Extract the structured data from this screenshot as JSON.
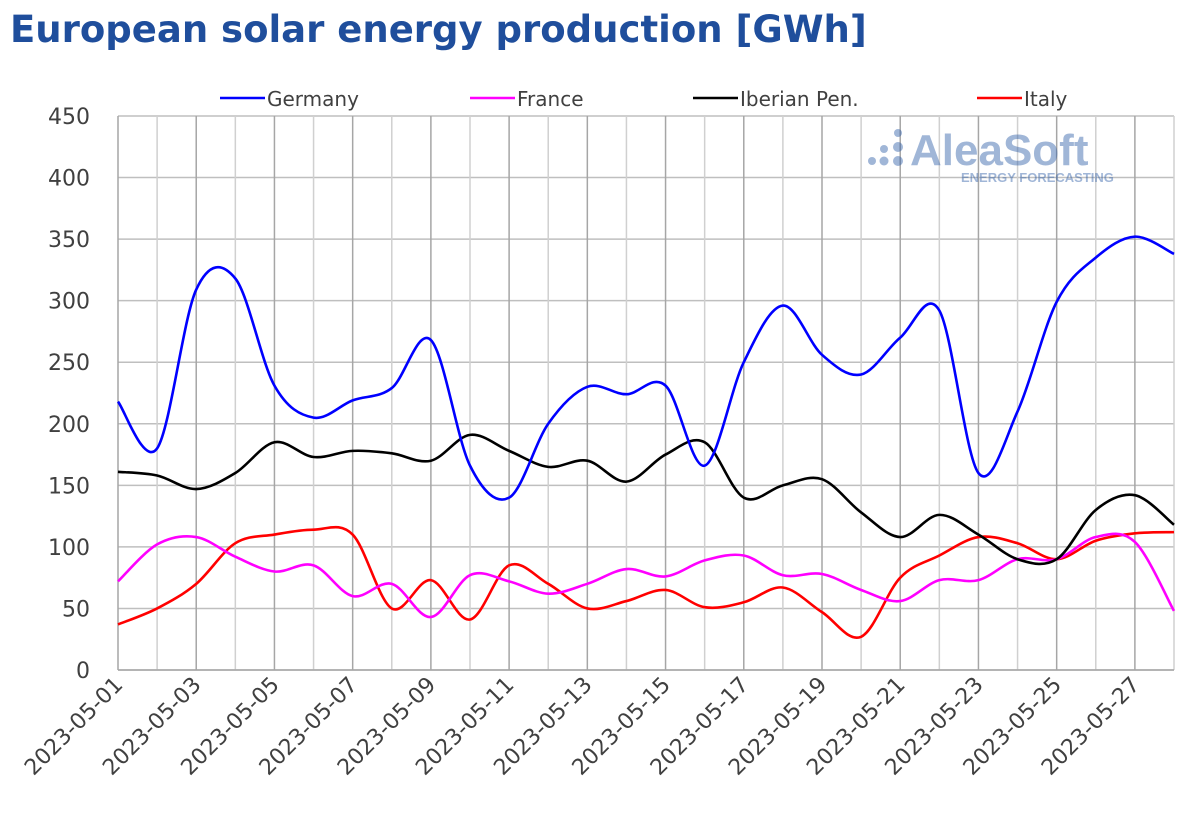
{
  "chart_data": {
    "type": "line",
    "title": "European solar energy production [GWh]",
    "xlabel": "",
    "ylabel": "",
    "ylim": [
      0,
      450
    ],
    "yticks": [
      0,
      50,
      100,
      150,
      200,
      250,
      300,
      350,
      400,
      450
    ],
    "grid": true,
    "legend": "top",
    "x": [
      "2023-05-01",
      "2023-05-02",
      "2023-05-03",
      "2023-05-04",
      "2023-05-05",
      "2023-05-06",
      "2023-05-07",
      "2023-05-08",
      "2023-05-09",
      "2023-05-10",
      "2023-05-11",
      "2023-05-12",
      "2023-05-13",
      "2023-05-14",
      "2023-05-15",
      "2023-05-16",
      "2023-05-17",
      "2023-05-18",
      "2023-05-19",
      "2023-05-20",
      "2023-05-21",
      "2023-05-22",
      "2023-05-23",
      "2023-05-24",
      "2023-05-25",
      "2023-05-26",
      "2023-05-27",
      "2023-05-28"
    ],
    "xtick_labels": [
      "2023-05-01",
      "2023-05-03",
      "2023-05-05",
      "2023-05-07",
      "2023-05-09",
      "2023-05-11",
      "2023-05-13",
      "2023-05-15",
      "2023-05-17",
      "2023-05-19",
      "2023-05-21",
      "2023-05-23",
      "2023-05-25",
      "2023-05-27"
    ],
    "series": [
      {
        "name": "Germany",
        "color": "#0000ff",
        "values": [
          218,
          180,
          309,
          318,
          231,
          205,
          219,
          229,
          268,
          166,
          140,
          200,
          230,
          224,
          231,
          166,
          250,
          296,
          256,
          240,
          270,
          292,
          160,
          210,
          299,
          335,
          352,
          338
        ]
      },
      {
        "name": "France",
        "color": "#ff00ff",
        "values": [
          72,
          102,
          108,
          92,
          80,
          85,
          60,
          70,
          43,
          77,
          72,
          62,
          70,
          82,
          76,
          89,
          93,
          77,
          78,
          65,
          56,
          73,
          73,
          90,
          90,
          108,
          104,
          48
        ]
      },
      {
        "name": "Iberian Pen.",
        "color": "#000000",
        "values": [
          161,
          158,
          147,
          160,
          185,
          173,
          178,
          176,
          170,
          191,
          178,
          165,
          170,
          153,
          175,
          185,
          140,
          150,
          155,
          128,
          108,
          126,
          110,
          90,
          90,
          130,
          142,
          118
        ]
      },
      {
        "name": "Italy",
        "color": "#ff0000",
        "values": [
          37,
          50,
          70,
          103,
          110,
          114,
          110,
          50,
          73,
          41,
          85,
          70,
          50,
          56,
          65,
          51,
          55,
          67,
          47,
          27,
          75,
          93,
          108,
          103,
          90,
          105,
          111,
          112
        ]
      }
    ]
  },
  "logo": {
    "name": "AleaSoft",
    "tagline": "ENERGY FORECASTING"
  }
}
